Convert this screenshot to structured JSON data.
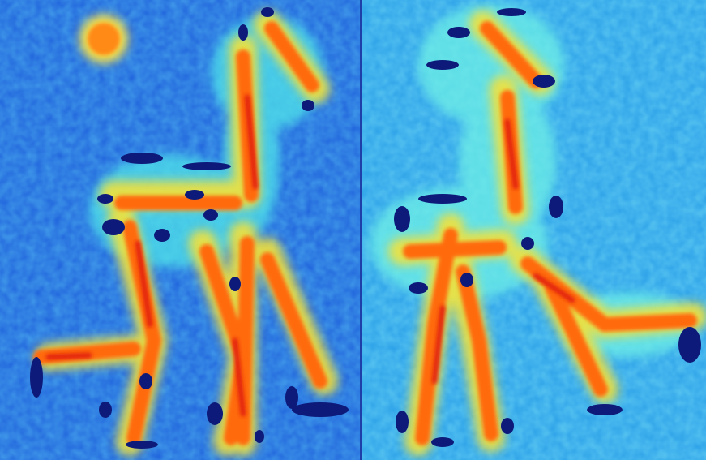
{
  "figure": {
    "panels": [
      {
        "id": "left",
        "subject": "giraffe-toy-heatmap-side-view"
      },
      {
        "id": "right",
        "subject": "giraffe-toy-heatmap-angled-view"
      }
    ],
    "colormap": {
      "low": "#1a4fd0",
      "low_mid": "#1fa0f0",
      "mid": "#43e6ee",
      "high_mid": "#f3e23a",
      "high": "#ff6b10",
      "peak": "#e01a0a",
      "outline": "#0d1a7a"
    }
  }
}
